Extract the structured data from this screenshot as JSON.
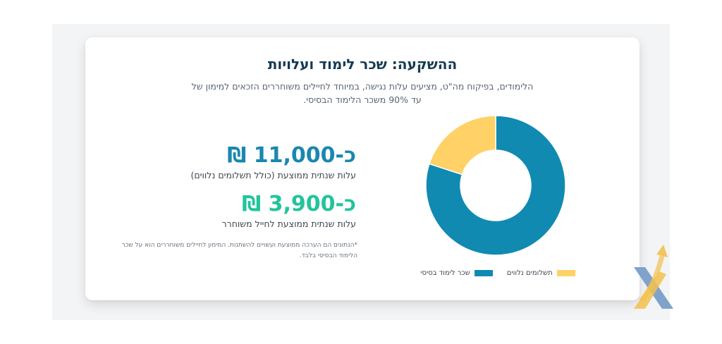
{
  "title": "ההשקעה: שכר לימוד ועלויות",
  "subtitle": "הלימודים, בפיקוח מה\"ט, מציעים עלות נגישה, במיוחד לחיילים משוחררים הזכאים למימון של עד 90% משכר הלימוד הבסיסי.",
  "stats": [
    {
      "value": "כ-11,000 ₪",
      "label": "עלות שנתית ממוצעת (כולל תשלומים נלווים)",
      "color": "#1a87b0"
    },
    {
      "value": "כ-3,900 ₪",
      "label": "עלות שנתית ממוצעת לחייל משוחרר",
      "color": "#22c49b"
    }
  ],
  "note": "*הנתונים הם הערכה ממוצעת ועשויים להשתנות. המימון לחיילים משוחררים הוא על שכר הלימוד הבסיסי בלבד.",
  "chart_data": {
    "type": "pie",
    "donut": true,
    "categories": [
      "שכר לימוד בסיסי",
      "תשלומים נלווים"
    ],
    "values": [
      80,
      20
    ],
    "colors": [
      "#118ab2",
      "#ffd166"
    ],
    "legend_position": "bottom"
  },
  "logo": {
    "icon": "x-arrow-logo-icon",
    "colors": [
      "#7fa3cc",
      "#f2c14e"
    ]
  }
}
